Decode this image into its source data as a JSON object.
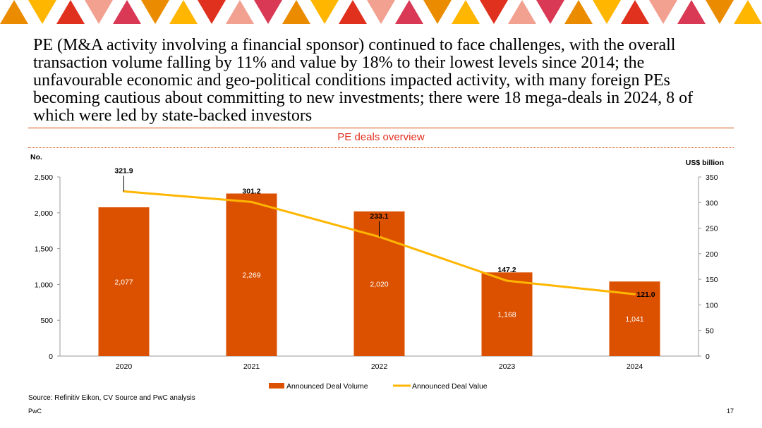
{
  "slide": {
    "headline": "PE (M&A activity involving a financial sponsor) continued to face challenges, with the overall transaction volume falling by 11% and value by 18% to their lowest levels since 2014; the unfavourable economic and geo-political conditions impacted activity, with many foreign PEs becoming cautious about committing to new investments; there were 18 mega-deals in 2024, 8 of which were led by state-backed investors",
    "source": "Source: Refinitiv Eikon, CV Source and PwC analysis",
    "footer_brand": "PwC",
    "page_number": "17"
  },
  "colors": {
    "bar": "#dc5100",
    "line": "#ffb600",
    "rule": "#d04a02",
    "title": "#e0301e",
    "banner": [
      "#eb8c00",
      "#ffb600",
      "#e0301e",
      "#f2a090",
      "#d93954"
    ]
  },
  "chart_data": {
    "type": "bar",
    "title": "PE deals overview",
    "categories": [
      "2020",
      "2021",
      "2022",
      "2023",
      "2024"
    ],
    "y_left_label": "No.",
    "y_right_label": "US$ billion",
    "y_left_range": [
      0,
      2500
    ],
    "y_left_ticks": [
      0,
      500,
      1000,
      1500,
      2000,
      2500
    ],
    "y_left_tick_labels": [
      "0",
      "500",
      "1,000",
      "1,500",
      "2,000",
      "2,500"
    ],
    "y_right_range": [
      0,
      350
    ],
    "y_right_ticks": [
      0,
      50,
      100,
      150,
      200,
      250,
      300,
      350
    ],
    "y_right_tick_labels": [
      "0",
      "50",
      "100",
      "150",
      "200",
      "250",
      "300",
      "350"
    ],
    "grid": false,
    "legend_position": "bottom",
    "series": [
      {
        "name": "Announced Deal Volume",
        "type": "bar",
        "axis": "left",
        "values": [
          2077,
          2269,
          2020,
          1168,
          1041
        ],
        "labels": [
          "2,077",
          "2,269",
          "2,020",
          "1,168",
          "1,041"
        ]
      },
      {
        "name": "Announced Deal Value",
        "type": "line",
        "axis": "right",
        "values": [
          321.9,
          301.2,
          233.1,
          147.2,
          121.0
        ],
        "labels": [
          "321.9",
          "301.2",
          "233.1",
          "147.2",
          "121.0"
        ]
      }
    ]
  }
}
